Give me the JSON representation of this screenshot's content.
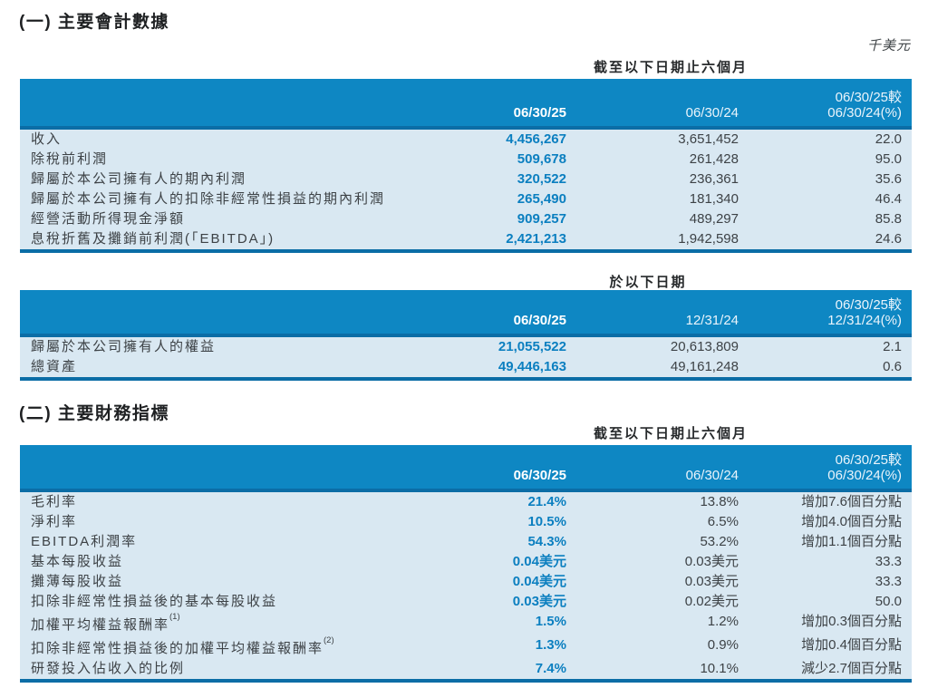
{
  "page": {
    "unit_label": "千美元"
  },
  "section1": {
    "title": "(一) 主要會計數據",
    "table1": {
      "period_header": "截至以下日期止六個月",
      "col1": "06/30/25",
      "col2": "06/30/24",
      "col3_line1": "06/30/25較",
      "col3_line2": "06/30/24(%)",
      "rows": [
        {
          "label": "收入",
          "v1": "4,456,267",
          "v2": "3,651,452",
          "v3": "22.0"
        },
        {
          "label": "除稅前利潤",
          "v1": "509,678",
          "v2": "261,428",
          "v3": "95.0"
        },
        {
          "label": "歸屬於本公司擁有人的期內利潤",
          "v1": "320,522",
          "v2": "236,361",
          "v3": "35.6"
        },
        {
          "label": "歸屬於本公司擁有人的扣除非經常性損益的期內利潤",
          "v1": "265,490",
          "v2": "181,340",
          "v3": "46.4"
        },
        {
          "label": "經營活動所得現金淨額",
          "v1": "909,257",
          "v2": "489,297",
          "v3": "85.8"
        },
        {
          "label": "息稅折舊及攤銷前利潤(「EBITDA」)",
          "v1": "2,421,213",
          "v2": "1,942,598",
          "v3": "24.6"
        }
      ]
    },
    "table2": {
      "period_header": "於以下日期",
      "col1": "06/30/25",
      "col2": "12/31/24",
      "col3_line1": "06/30/25較",
      "col3_line2": "12/31/24(%)",
      "rows": [
        {
          "label": "歸屬於本公司擁有人的權益",
          "v1": "21,055,522",
          "v2": "20,613,809",
          "v3": "2.1"
        },
        {
          "label": "總資產",
          "v1": "49,446,163",
          "v2": "49,161,248",
          "v3": "0.6"
        }
      ]
    }
  },
  "section2": {
    "title": "(二) 主要財務指標",
    "table3": {
      "period_header": "截至以下日期止六個月",
      "col1": "06/30/25",
      "col2": "06/30/24",
      "col3_line1": "06/30/25較",
      "col3_line2": "06/30/24(%)",
      "rows": [
        {
          "label": "毛利率",
          "v1": "21.4%",
          "v2": "13.8%",
          "v3": "增加7.6個百分點"
        },
        {
          "label": "淨利率",
          "v1": "10.5%",
          "v2": "6.5%",
          "v3": "增加4.0個百分點"
        },
        {
          "label": "EBITDA利潤率",
          "v1": "54.3%",
          "v2": "53.2%",
          "v3": "增加1.1個百分點"
        },
        {
          "label": "基本每股收益",
          "v1": "0.04美元",
          "v2": "0.03美元",
          "v3": "33.3"
        },
        {
          "label": "攤薄每股收益",
          "v1": "0.04美元",
          "v2": "0.03美元",
          "v3": "33.3"
        },
        {
          "label": "扣除非經常性損益後的基本每股收益",
          "v1": "0.03美元",
          "v2": "0.02美元",
          "v3": "50.0"
        },
        {
          "label": "加權平均權益報酬率",
          "sup": "(1)",
          "v1": "1.5%",
          "v2": "1.2%",
          "v3": "增加0.3個百分點"
        },
        {
          "label": "扣除非經常性損益後的加權平均權益報酬率",
          "sup": "(2)",
          "v1": "1.3%",
          "v2": "0.9%",
          "v3": "增加0.4個百分點"
        },
        {
          "label": "研發投入佔收入的比例",
          "v1": "7.4%",
          "v2": "10.1%",
          "v3": "減少2.7個百分點"
        }
      ]
    }
  },
  "colors": {
    "header_band_blue": "#0e87c3",
    "accent_line_blue": "#0b6da6",
    "body_light_blue": "#d9e8f2",
    "value_blue": "#0b7fc0",
    "text_gray": "#3d4246"
  }
}
